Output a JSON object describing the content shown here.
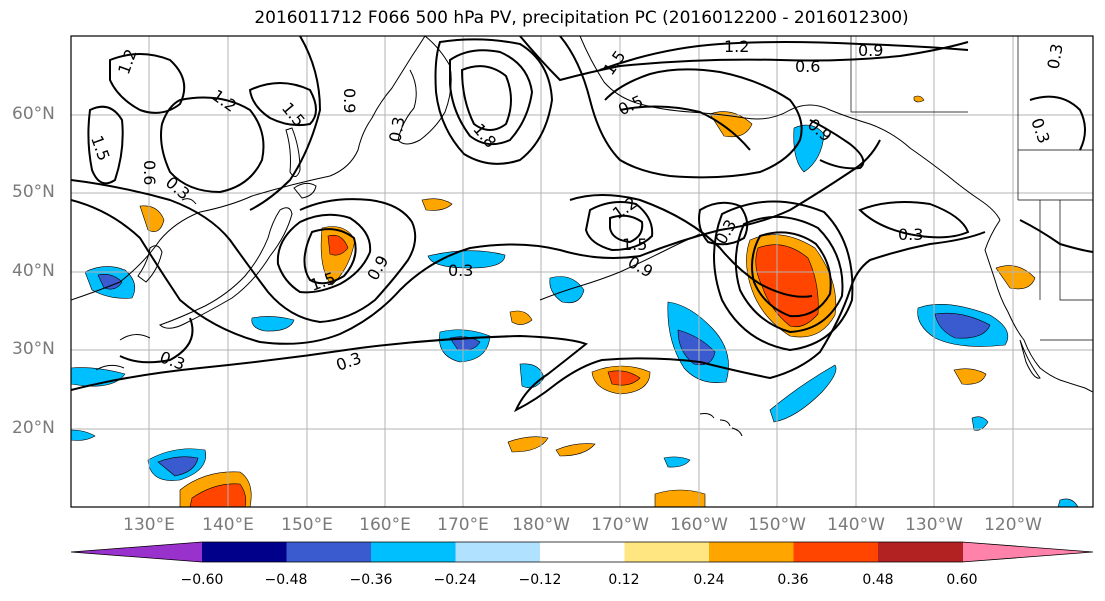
{
  "title": "2016011712 F066 500 hPa PV, precipitation PC (2016012200 - 2016012300)",
  "lat_labels": [
    "60°N",
    "50°N",
    "40°N",
    "30°N",
    "20°N"
  ],
  "lon_labels": [
    "130°E",
    "140°E",
    "150°E",
    "160°E",
    "170°E",
    "180°W",
    "170°W",
    "160°W",
    "150°W",
    "140°W",
    "130°W",
    "120°W"
  ],
  "contour_labels": [
    "1.2",
    "1.2",
    "1.5",
    "0.6",
    "0.3",
    "0.9",
    "1.8",
    "0.3",
    "1.2",
    "1.5",
    "0.3",
    "0.9",
    "1.5",
    "0.3",
    "0.3",
    "0.3",
    "1.2",
    "0.6",
    "0.9",
    "0.9",
    "0.5",
    "0.3",
    "0.3",
    "1.5",
    "0.9",
    "1.5",
    "0.3"
  ],
  "colorbar": {
    "colors": [
      "#9932cc",
      "#00008b",
      "#3a5bcf",
      "#00bfff",
      "#b0e2ff",
      "#ffffff",
      "#ffe680",
      "#ffa500",
      "#ff4500",
      "#b22222",
      "#ff82ab"
    ],
    "tick_labels": [
      "−0.60",
      "−0.48",
      "−0.36",
      "−0.24",
      "−0.12",
      "0.12",
      "0.24",
      "0.36",
      "0.48",
      "0.60"
    ]
  }
}
